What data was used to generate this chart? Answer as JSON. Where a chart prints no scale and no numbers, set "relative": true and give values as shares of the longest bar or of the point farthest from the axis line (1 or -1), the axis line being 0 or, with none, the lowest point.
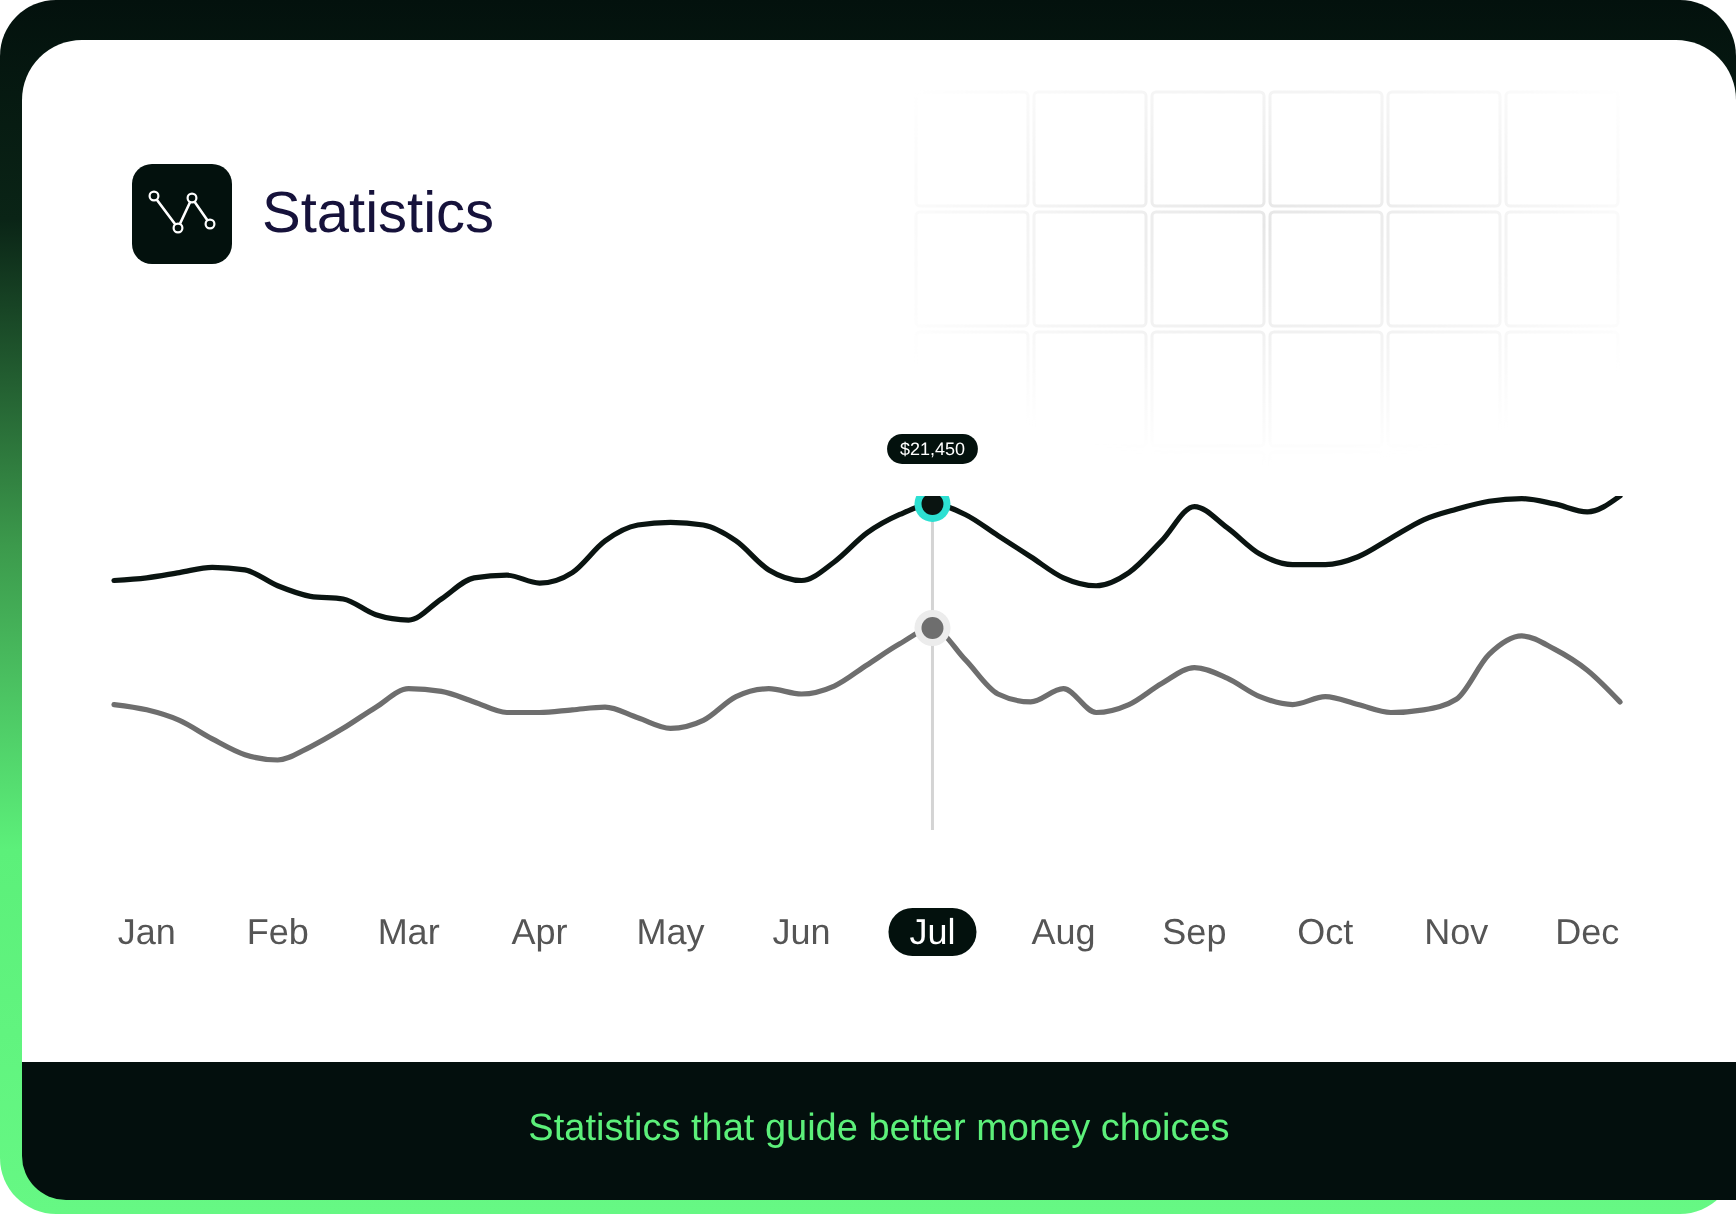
{
  "chart_data": {
    "type": "line",
    "title": "Statistics",
    "relative": true,
    "marker": "none",
    "annotations": [
      {
        "text": "$21,450",
        "x": "Jul",
        "y": 0.97
      },
      "Statistics that guide better money choices"
    ],
    "categories": [
      null,
      "Jan",
      null,
      null,
      null,
      "Feb",
      null,
      null,
      null,
      "Mar",
      null,
      null,
      null,
      "Apr",
      null,
      null,
      null,
      "May",
      null,
      null,
      null,
      "Jun",
      null,
      null,
      null,
      "Jul",
      null,
      null,
      null,
      "Aug",
      null,
      null,
      null,
      "Sep",
      null,
      null,
      null,
      "Oct",
      null,
      null,
      null,
      "Nov",
      null,
      null,
      null,
      "Dec",
      null
    ],
    "ref_lines": [
      {
        "axis": "x",
        "value": "Jul",
        "color": "#d4d4d4"
      }
    ],
    "series": [
      {
        "color": "#0a1411",
        "values": [
          0.68,
          0.69,
          0.71,
          0.73,
          0.72,
          0.66,
          0.62,
          0.61,
          0.55,
          0.53,
          0.61,
          0.69,
          0.7,
          0.67,
          0.71,
          0.83,
          0.89,
          0.9,
          0.89,
          0.83,
          0.72,
          0.68,
          0.75,
          0.86,
          0.93,
          0.97,
          0.93,
          0.85,
          0.77,
          0.69,
          0.66,
          0.71,
          0.83,
          0.96,
          0.88,
          0.78,
          0.74,
          0.74,
          0.77,
          0.84,
          0.91,
          0.95,
          0.98,
          0.99,
          0.97,
          0.94,
          1
        ]
      },
      {
        "color": "#6e6e6e",
        "values": [
          0.21,
          0.19,
          0.15,
          0.08,
          0.02,
          0,
          0.05,
          0.12,
          0.2,
          0.27,
          0.26,
          0.22,
          0.18,
          0.18,
          0.19,
          0.2,
          0.16,
          0.12,
          0.15,
          0.24,
          0.27,
          0.25,
          0.28,
          0.36,
          0.44,
          0.5,
          0.38,
          0.25,
          0.22,
          0.27,
          0.18,
          0.21,
          0.29,
          0.35,
          0.31,
          0.24,
          0.21,
          0.24,
          0.21,
          0.18,
          0.19,
          0.23,
          0.4,
          0.47,
          0.42,
          0.34,
          0.22
        ]
      }
    ]
  }
}
